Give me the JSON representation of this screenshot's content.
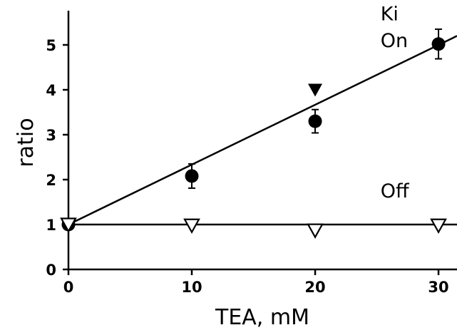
{
  "chart_data": {
    "type": "scatter",
    "xlabel": "TEA, mM",
    "ylabel": "ratio",
    "xlim": [
      0,
      31.5
    ],
    "ylim": [
      0,
      6
    ],
    "xticks": [
      0,
      10,
      20,
      30
    ],
    "yticks": [
      0,
      1,
      2,
      3,
      4,
      5
    ],
    "xtick_labels": [
      "0",
      "10",
      "20",
      "30"
    ],
    "ytick_labels": [
      "0",
      "1",
      "2",
      "3",
      "4",
      "5"
    ],
    "grid": false,
    "annotations": [
      {
        "text": "Ki",
        "x": 25.3,
        "y": 5.55
      },
      {
        "text": "On",
        "x": 25.3,
        "y": 4.95
      },
      {
        "text": "Off",
        "x": 25.3,
        "y": 1.6
      }
    ],
    "series": [
      {
        "marker": "filled-circle",
        "x": [
          0,
          10,
          20,
          30
        ],
        "y": [
          1.0,
          2.08,
          3.3,
          5.02
        ],
        "error": [
          0.05,
          0.27,
          0.26,
          0.33
        ]
      },
      {
        "marker": "filled-triangle-down",
        "x": [
          20
        ],
        "y": [
          4.0
        ]
      },
      {
        "marker": "open-triangle-down",
        "x": [
          0,
          10,
          20,
          30
        ],
        "y": [
          1.0,
          0.98,
          0.87,
          0.98
        ]
      }
    ],
    "fit_lines": [
      {
        "x": [
          0,
          31.5
        ],
        "y": [
          1.0,
          5.2
        ]
      },
      {
        "x": [
          0,
          31.5
        ],
        "y": [
          1.0,
          1.0
        ]
      }
    ]
  }
}
